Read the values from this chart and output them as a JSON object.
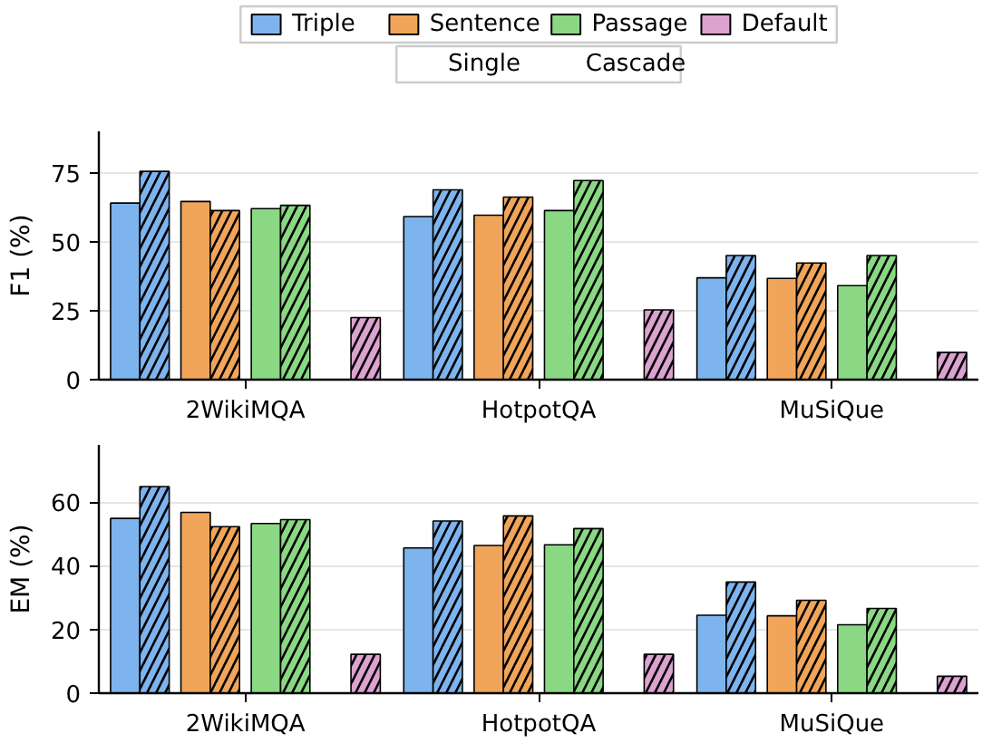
{
  "chart_data": [
    {
      "type": "bar",
      "ylabel": "F1 (%)",
      "categories": [
        "2WikiMQA",
        "HotpotQA",
        "MuSiQue"
      ],
      "ylim": [
        0,
        90
      ],
      "yticks": [
        0,
        25,
        50,
        75
      ],
      "grid": "y",
      "legend": "top",
      "annotations": [
        "Single",
        "Cascade"
      ],
      "series": [
        {
          "name": "Triple",
          "color": "#7eb4ee",
          "line_style": "solid",
          "values": [
            64,
            59.1,
            36.9
          ]
        },
        {
          "color": "#7eb4ee",
          "line_style": "dashed",
          "values": [
            75.5,
            68.8,
            45
          ]
        },
        {
          "name": "Sentence",
          "color": "#f0a55a",
          "line_style": "solid",
          "values": [
            64.6,
            59.6,
            36.7
          ]
        },
        {
          "color": "#f0a55a",
          "line_style": "dashed",
          "values": [
            61.3,
            66.2,
            42.3
          ]
        },
        {
          "name": "Passage",
          "color": "#8ad884",
          "line_style": "solid",
          "values": [
            62,
            61.3,
            34.1
          ]
        },
        {
          "color": "#8ad884",
          "line_style": "dashed",
          "values": [
            63.2,
            72.2,
            45
          ]
        },
        {
          "name": "Default",
          "color": "#dca2d0",
          "line_style": "dashed",
          "values": [
            22.5,
            25.3,
            9.9
          ]
        }
      ]
    },
    {
      "type": "bar",
      "ylabel": "EM (%)",
      "categories": [
        "2WikiMQA",
        "HotpotQA",
        "MuSiQue"
      ],
      "ylim": [
        0,
        78
      ],
      "yticks": [
        0,
        20,
        40,
        60
      ],
      "grid": "y",
      "series": [
        {
          "color": "#7eb4ee",
          "line_style": "solid",
          "values": [
            54.9,
            45.6,
            24.5
          ]
        },
        {
          "color": "#7eb4ee",
          "line_style": "dashed",
          "values": [
            64.9,
            54.1,
            34.9
          ]
        },
        {
          "color": "#f0a55a",
          "line_style": "solid",
          "values": [
            56.8,
            46.4,
            24.3
          ]
        },
        {
          "color": "#f0a55a",
          "line_style": "dashed",
          "values": [
            52.3,
            55.7,
            29.2
          ]
        },
        {
          "color": "#8ad884",
          "line_style": "solid",
          "values": [
            53.3,
            46.6,
            21.5
          ]
        },
        {
          "color": "#8ad884",
          "line_style": "dashed",
          "values": [
            54.5,
            51.7,
            26.6
          ]
        },
        {
          "color": "#dca2d0",
          "line_style": "dashed",
          "values": [
            12.2,
            12.2,
            5.3
          ]
        }
      ]
    }
  ]
}
